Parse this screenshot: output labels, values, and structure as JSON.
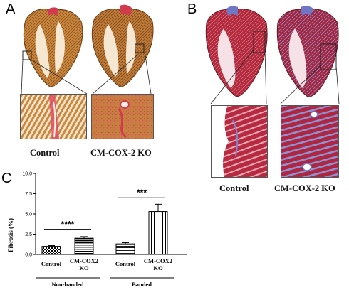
{
  "panels": {
    "a": {
      "letter": "A",
      "captions": [
        "Control",
        "CM-COX-2 KO"
      ]
    },
    "b": {
      "letter": "B",
      "captions": [
        "Control",
        "CM-COX-2 KO"
      ]
    },
    "c": {
      "letter": "C"
    }
  },
  "colors": {
    "picrosirius_tissue": "#c9883e",
    "picrosirius_collagen": "#d23a4e",
    "trichrome_tissue": "#b0263a",
    "trichrome_collagen": "#6f76c4"
  },
  "chart_data": {
    "type": "bar",
    "ylabel": "Fibrosis (%)",
    "ylim": [
      0,
      10
    ],
    "yticks": [
      "0.0",
      "2.5",
      "5.0",
      "7.5",
      "10.0"
    ],
    "categories": [
      "Control",
      "CM-COX2 KO",
      "Control",
      "CM-COX2 KO"
    ],
    "groups": [
      "Non-banded",
      "Banded"
    ],
    "values": [
      1.0,
      2.0,
      1.3,
      5.3
    ],
    "errors": [
      0.1,
      0.2,
      0.15,
      0.9
    ],
    "bar_patterns": [
      "checker",
      "stripes-horizontal",
      "stripes-horizontal-fine",
      "stripes-vertical"
    ],
    "significance": [
      {
        "label": "****",
        "between": [
          0,
          1
        ]
      },
      {
        "label": "***",
        "between": [
          2,
          3
        ]
      }
    ],
    "grid": false
  }
}
